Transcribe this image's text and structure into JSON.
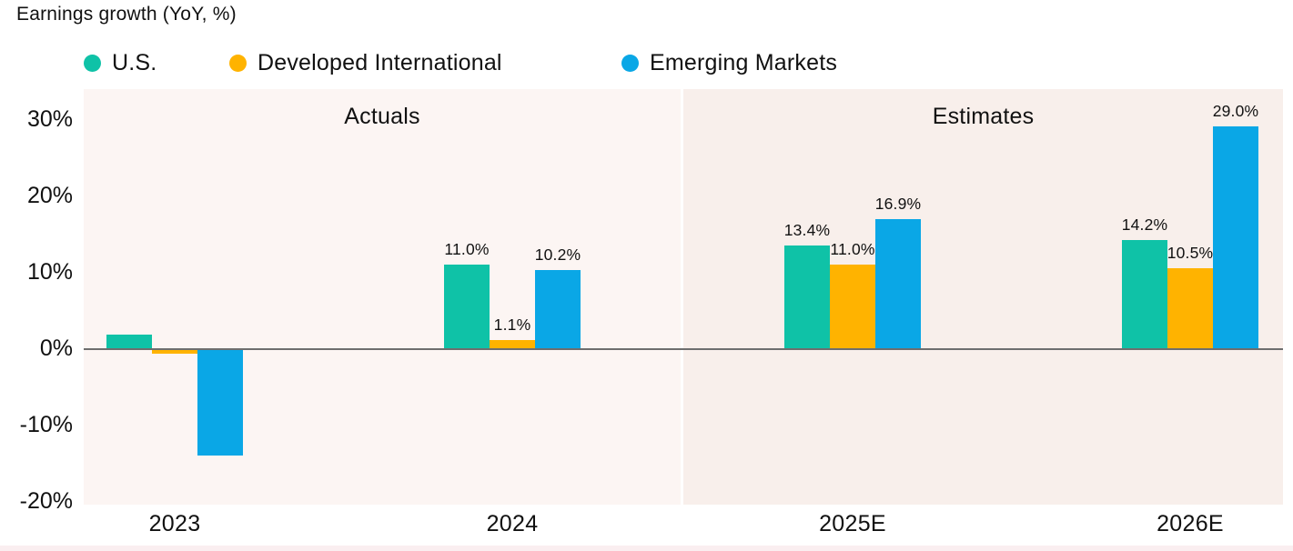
{
  "title": "Earnings growth (YoY, %)",
  "legend": [
    {
      "label": "U.S.",
      "color": "#0FC2A7"
    },
    {
      "label": "Developed International",
      "color": "#FFB300"
    },
    {
      "label": "Emerging Markets",
      "color": "#0AA7E6"
    }
  ],
  "sections": [
    {
      "label": "Actuals",
      "background": "#FCF5F3",
      "categories": [
        "2023",
        "2024"
      ]
    },
    {
      "label": "Estimates",
      "background": "#F8EFEB",
      "categories": [
        "2025E",
        "2026E"
      ]
    }
  ],
  "chart_data": {
    "type": "bar",
    "title": "Earnings growth (YoY, %)",
    "categories": [
      "2023",
      "2024",
      "2025E",
      "2026E"
    ],
    "series": [
      {
        "name": "U.S.",
        "color": "#0FC2A7",
        "values": [
          1.8,
          11.0,
          13.4,
          14.2
        ],
        "labels": [
          "",
          "11.0%",
          "13.4%",
          "14.2%"
        ]
      },
      {
        "name": "Developed International",
        "color": "#FFB300",
        "values": [
          -0.7,
          1.1,
          11.0,
          10.5
        ],
        "labels": [
          "",
          "1.1%",
          "11.0%",
          "10.5%"
        ]
      },
      {
        "name": "Emerging Markets",
        "color": "#0AA7E6",
        "values": [
          -14.0,
          10.2,
          16.9,
          29.0
        ],
        "labels": [
          "",
          "10.2%",
          "16.9%",
          "29.0%"
        ]
      }
    ],
    "y_axis": {
      "ticks": [
        "30%",
        "20%",
        "10%",
        "0%",
        "-10%",
        "-20%"
      ],
      "tick_values": [
        30,
        20,
        10,
        0,
        -10,
        -20
      ],
      "min": -20.5,
      "max": 34
    },
    "grid": false,
    "legend_position": "top",
    "zero_line_color": "#6e6e6e"
  }
}
